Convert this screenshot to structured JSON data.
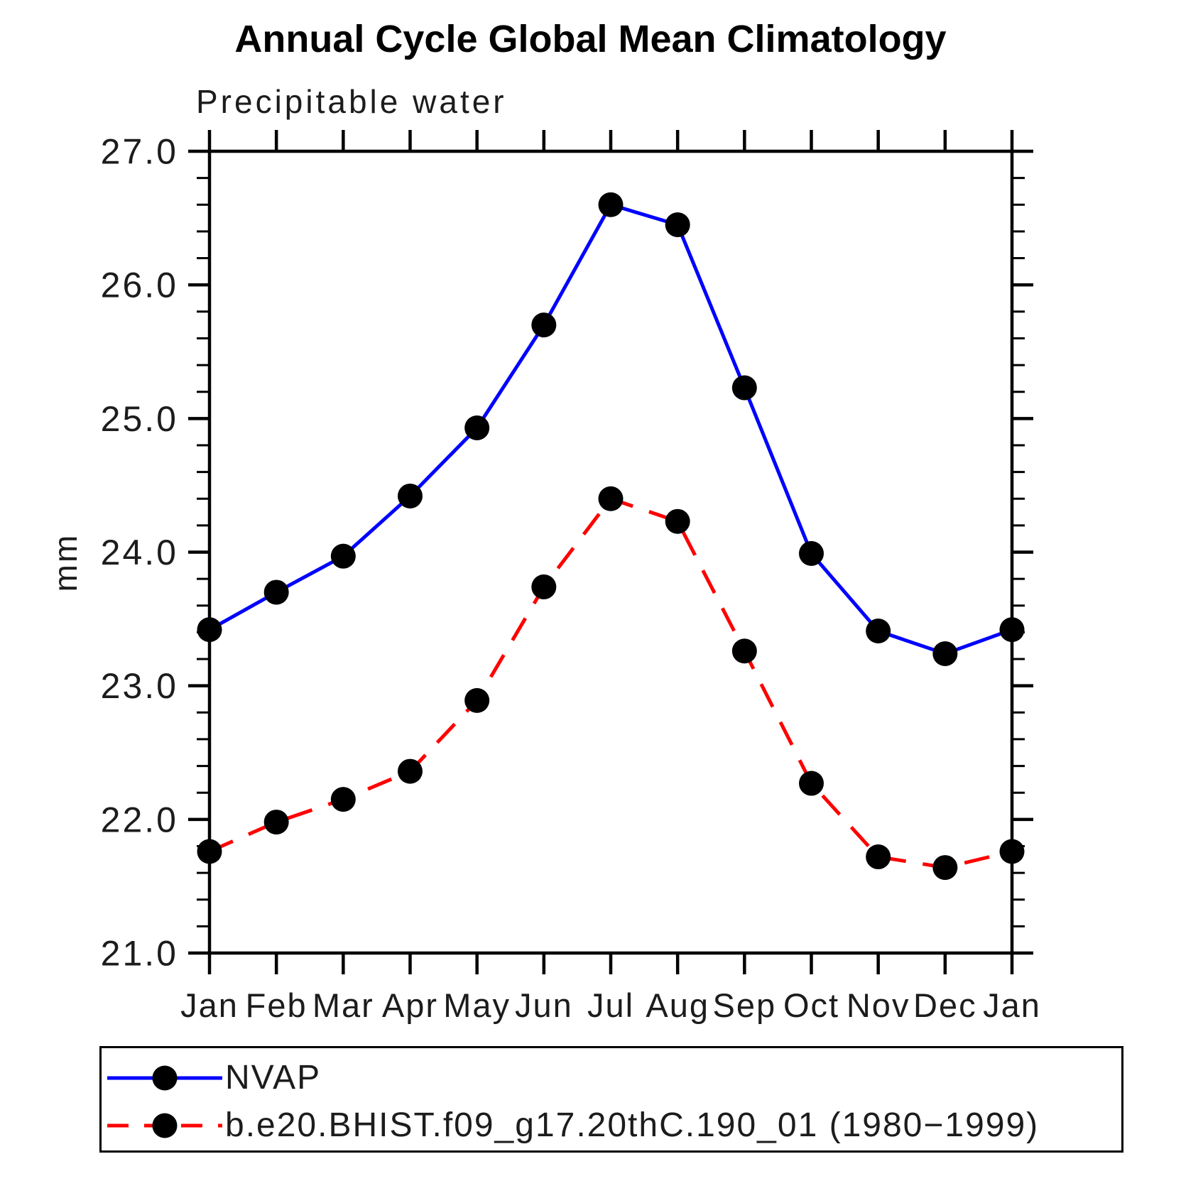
{
  "page": {
    "background": "#ffffff",
    "axis_color": "#000000",
    "text_color": "#1c1c1c"
  },
  "chart_data": {
    "type": "line",
    "title": "Annual Cycle Global Mean Climatology",
    "subtitle": "Precipitable water",
    "xlabel": "",
    "ylabel": "mm",
    "categories": [
      "Jan",
      "Feb",
      "Mar",
      "Apr",
      "May",
      "Jun",
      "Jul",
      "Aug",
      "Sep",
      "Oct",
      "Nov",
      "Dec",
      "Jan"
    ],
    "ylim": [
      21.0,
      27.0
    ],
    "ytick_labels": [
      "21.0",
      "22.0",
      "23.0",
      "24.0",
      "25.0",
      "26.0",
      "27.0"
    ],
    "minor_tick_interval": 0.2,
    "grid": false,
    "legend_position": "bottom",
    "series": [
      {
        "name": "NVAP",
        "color": "#0000ff",
        "style": "solid",
        "marker": "circle",
        "marker_color": "#000000",
        "values": [
          23.42,
          23.7,
          23.97,
          24.42,
          24.93,
          25.7,
          26.6,
          26.45,
          25.23,
          23.99,
          23.41,
          23.24,
          23.42
        ]
      },
      {
        "name": "b.e20.BHIST.f09_g17.20thC.190_01 (1980−1999)",
        "color": "#ff0000",
        "style": "dashed",
        "marker": "circle",
        "marker_color": "#000000",
        "values": [
          21.76,
          21.98,
          22.15,
          22.36,
          22.89,
          23.74,
          24.4,
          24.23,
          23.26,
          22.27,
          21.72,
          21.64,
          21.76
        ]
      }
    ]
  }
}
